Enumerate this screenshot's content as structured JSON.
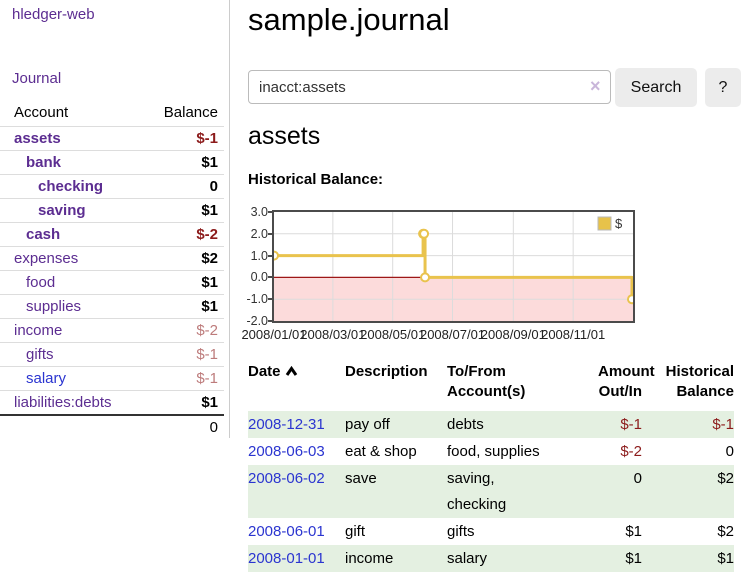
{
  "app": {
    "brand": "hledger-web",
    "nav_journal": "Journal"
  },
  "sidebar": {
    "col_account": "Account",
    "col_balance": "Balance",
    "accounts": [
      {
        "name": "assets",
        "balance": "$-1",
        "depth": 1,
        "matched": true,
        "negative": "strong"
      },
      {
        "name": "bank",
        "balance": "$1",
        "depth": 2,
        "matched": true
      },
      {
        "name": "checking",
        "balance": "0",
        "depth": 3,
        "matched": true
      },
      {
        "name": "saving",
        "balance": "$1",
        "depth": 3,
        "matched": true
      },
      {
        "name": "cash",
        "balance": "$-2",
        "depth": 2,
        "matched": true,
        "negative": "strong"
      },
      {
        "name": "expenses",
        "balance": "$2",
        "depth": 1
      },
      {
        "name": "food",
        "balance": "$1",
        "depth": 2
      },
      {
        "name": "supplies",
        "balance": "$1",
        "depth": 2
      },
      {
        "name": "income",
        "balance": "$-2",
        "depth": 1,
        "negative": "muted"
      },
      {
        "name": "gifts",
        "balance": "$-1",
        "depth": 2,
        "negative": "muted"
      },
      {
        "name": "salary",
        "balance": "$-1",
        "depth": 2,
        "negative": "muted",
        "link_style": "unvisited"
      },
      {
        "name": "liabilities:debts",
        "balance": "$1",
        "depth": 1
      }
    ],
    "total": "0"
  },
  "main": {
    "title": "sample.journal",
    "search": {
      "value": "inacct:assets",
      "clear_icon": "×",
      "button": "Search",
      "help": "?"
    },
    "account_heading": "assets",
    "chart_heading": "Historical Balance:"
  },
  "chart_data": {
    "type": "line",
    "title": "Historical Balance of assets",
    "step": true,
    "legend": "$",
    "legend_position": "top-right",
    "x_start": "2008-01-01",
    "x_end": "2009-01-01",
    "x": [
      "2008-01-01",
      "2008-06-01",
      "2008-06-02",
      "2008-06-03",
      "2008-12-31"
    ],
    "values": [
      1,
      2,
      2,
      0,
      -1
    ],
    "ylim": [
      -2,
      3
    ],
    "yticks": [
      "3.0",
      "2.0",
      "1.0",
      "0.0",
      "-1.0",
      "-2.0"
    ],
    "xticks": [
      "2008/01/01",
      "2008/03/01",
      "2008/05/01",
      "2008/07/01",
      "2008/09/01",
      "2008/11/01"
    ],
    "grid": true,
    "colors": {
      "line": "#e9c34d",
      "marker_fill": "#ffffff",
      "negative_region": "#fcdbdb",
      "zero_line": "#9e1717",
      "gridline": "#dcdcdc",
      "plot_border": "#4b4b4b",
      "legend_fill": "#e7c24a"
    }
  },
  "register": {
    "columns": [
      "Date",
      "Description",
      "To/From\nAccount(s)",
      "Amount\nOut/In",
      "Historical\nBalance"
    ],
    "rows": [
      {
        "date": "2008-12-31",
        "description": "pay off",
        "accounts": "debts",
        "amount": "$-1",
        "balance": "$-1",
        "amount_negative": true,
        "balance_negative": true,
        "shaded": true
      },
      {
        "date": "2008-06-03",
        "description": "eat & shop",
        "accounts": "food, supplies",
        "amount": "$-2",
        "balance": "0",
        "amount_negative": true
      },
      {
        "date": "2008-06-02",
        "description": "save",
        "accounts": "saving,\nchecking",
        "amount": "0",
        "balance": "$2",
        "shaded": true
      },
      {
        "date": "2008-06-01",
        "description": "gift",
        "accounts": "gifts",
        "amount": "$1",
        "balance": "$2"
      },
      {
        "date": "2008-01-01",
        "description": "income",
        "accounts": "salary",
        "amount": "$1",
        "balance": "$1",
        "shaded": true
      }
    ]
  }
}
